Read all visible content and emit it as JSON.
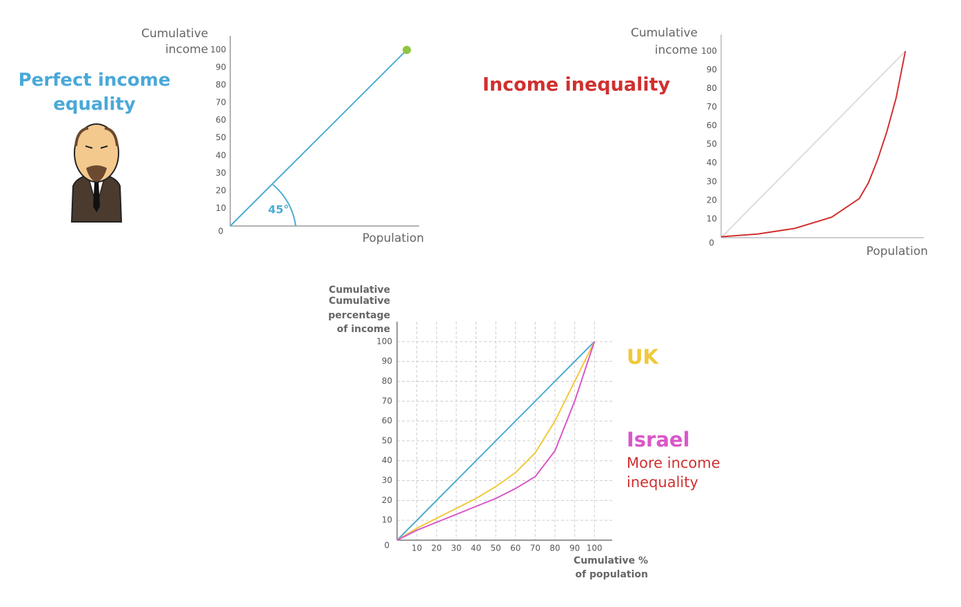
{
  "chart_data": [
    {
      "type": "line",
      "title": [
        "Perfect income",
        "equality"
      ],
      "ylabel": [
        "Cumulative",
        "income"
      ],
      "xlabel": "Population",
      "annotations": [
        "45°"
      ],
      "x": [
        0,
        100
      ],
      "series": [
        {
          "color": "#4aabd1",
          "values": [
            0,
            100
          ],
          "end_marker_color": "#8dc63f"
        }
      ],
      "xlim": [
        0,
        107
      ],
      "ylim": [
        0,
        108
      ],
      "yticks": [
        0,
        10,
        20,
        30,
        40,
        50,
        60,
        70,
        80,
        90,
        100
      ],
      "grid": false
    },
    {
      "type": "line",
      "title": "Income inequality",
      "ylabel": [
        "Cumulative",
        "income"
      ],
      "xlabel": "Population",
      "x": [
        0,
        20,
        40,
        60,
        75,
        80,
        85,
        90,
        95,
        100
      ],
      "series": [
        {
          "color": "#dddddd",
          "values": [
            0,
            20,
            40,
            60,
            75,
            80,
            85,
            90,
            95,
            100
          ]
        },
        {
          "color": "#d0302f",
          "values": [
            0.5,
            2,
            5,
            11,
            21,
            29.5,
            42,
            57,
            75,
            100
          ]
        }
      ],
      "xlim": [
        0,
        110
      ],
      "ylim": [
        0,
        109
      ],
      "yticks": [
        0,
        10,
        20,
        30,
        40,
        50,
        60,
        70,
        80,
        90,
        100
      ],
      "grid": false
    },
    {
      "type": "line",
      "ylabel": [
        "Cumulative",
        "Cumulative",
        "percentage",
        "of income"
      ],
      "xlabel": [
        "Cumulative %",
        "of population"
      ],
      "annotations": [
        "More income",
        "inequality"
      ],
      "x": [
        0,
        10,
        20,
        30,
        40,
        50,
        60,
        70,
        80,
        90,
        100
      ],
      "series": [
        {
          "color": "#4aabd1",
          "values": [
            0,
            10,
            20,
            30,
            40,
            50,
            60,
            70,
            80,
            90,
            100
          ]
        },
        {
          "name": "UK",
          "color": "#f0c93a",
          "values": [
            0,
            6,
            11,
            16,
            21,
            27,
            34,
            44,
            60,
            80,
            100
          ]
        },
        {
          "name": "Israel",
          "color": "#d957c9",
          "values": [
            0,
            5,
            9,
            13,
            17,
            21,
            26,
            32,
            45,
            70,
            100
          ]
        }
      ],
      "xlim": [
        0,
        109
      ],
      "ylim": [
        0,
        110
      ],
      "xticks": [
        10,
        20,
        30,
        40,
        50,
        60,
        70,
        80,
        90,
        100
      ],
      "yticks": [
        0,
        10,
        20,
        30,
        40,
        50,
        60,
        70,
        80,
        90,
        100
      ],
      "grid": true
    }
  ]
}
